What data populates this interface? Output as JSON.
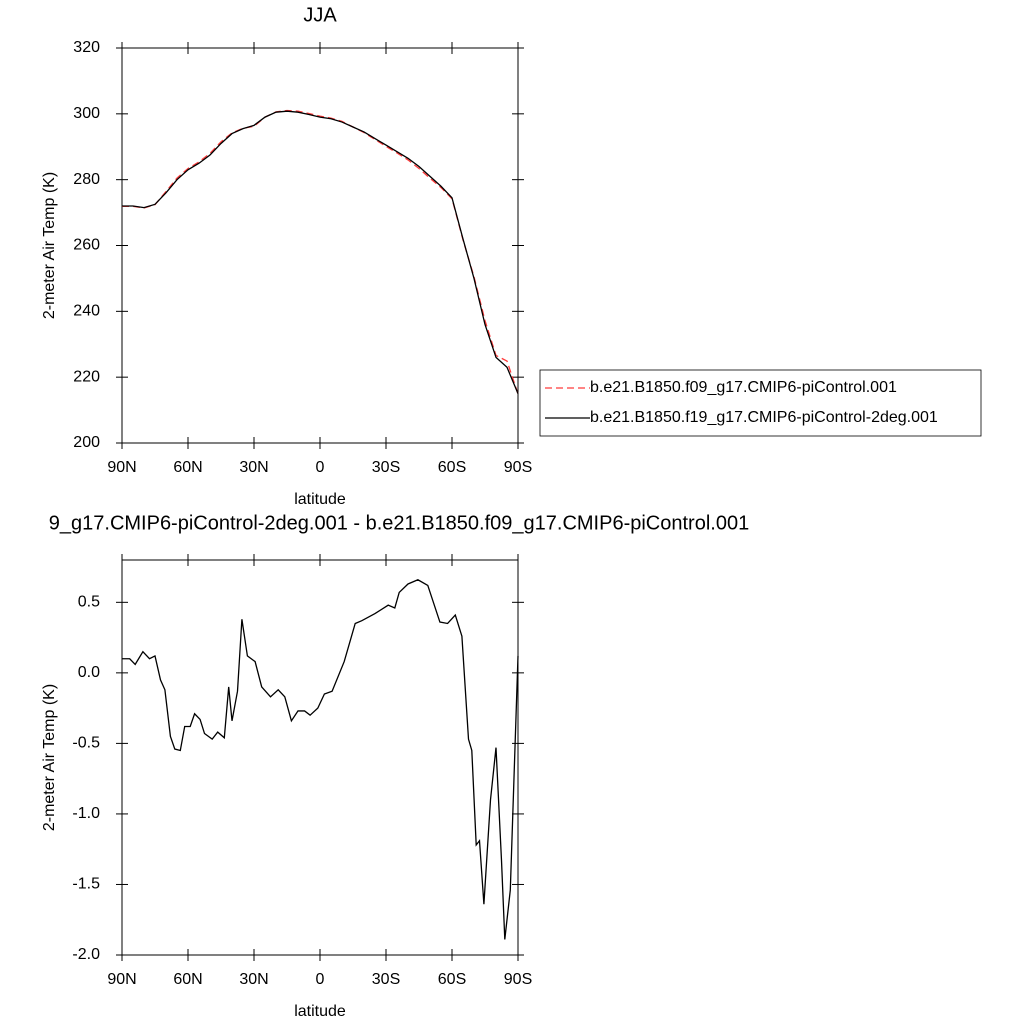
{
  "chart_data": [
    {
      "type": "line",
      "title": "JJA",
      "xlabel": "latitude",
      "ylabel": "2-meter Air Temp (K)",
      "x": [
        90,
        85,
        80,
        75,
        70,
        65,
        60,
        55,
        50,
        45,
        40,
        35,
        30,
        25,
        20,
        15,
        10,
        5,
        0,
        -5,
        -10,
        -15,
        -20,
        -25,
        -30,
        -35,
        -40,
        -45,
        -50,
        -55,
        -60,
        -65,
        -70,
        -75,
        -80,
        -85,
        -90
      ],
      "series": [
        {
          "name": "b.e21.B1850.f09_g17.CMIP6-piControl.001",
          "color": "#ff3b3b",
          "dash": true,
          "values": [
            271.9,
            271.9,
            271.4,
            272.4,
            276.4,
            280.5,
            283.4,
            285.4,
            288,
            291.5,
            294.2,
            295.6,
            296.2,
            299,
            300.6,
            301,
            300.8,
            300.1,
            299.3,
            298.7,
            297.7,
            296,
            294.3,
            292.2,
            290.1,
            288.1,
            286,
            283.4,
            280.4,
            277.6,
            274.2,
            261.7,
            250.5,
            237.2,
            226.6,
            224.9,
            214.9
          ]
        },
        {
          "name": "b.e21.B1850.f19_g17.CMIP6-piControl-2deg.001",
          "color": "#000000",
          "dash": false,
          "values": [
            272,
            272,
            271.5,
            272.5,
            276,
            280,
            283,
            285,
            287.5,
            291,
            294,
            295.5,
            296.5,
            299,
            300.5,
            300.8,
            300.5,
            299.8,
            299,
            298.5,
            297.5,
            296,
            294.5,
            292.5,
            290.5,
            288.5,
            286.5,
            284,
            281,
            278,
            274.5,
            262,
            250,
            236,
            226,
            223,
            215
          ]
        }
      ],
      "xlim": [
        90,
        -90
      ],
      "xticks": [
        {
          "value": 90,
          "label": "90N"
        },
        {
          "value": 60,
          "label": "60N"
        },
        {
          "value": 30,
          "label": "30N"
        },
        0,
        {
          "value": -30,
          "label": "30S"
        },
        {
          "value": -60,
          "label": "60S"
        },
        {
          "value": -90,
          "label": "90S"
        }
      ],
      "ylim": [
        200,
        320
      ],
      "yticks": [
        200,
        220,
        240,
        260,
        280,
        300,
        320
      ]
    },
    {
      "type": "line",
      "title": "9_g17.CMIP6-piControl-2deg.001 - b.e21.B1850.f09_g17.CMIP6-piControl.001",
      "xlabel": "latitude",
      "ylabel": "2-meter Air Temp (K)",
      "x": [
        90,
        86.5,
        84,
        80.5,
        77.5,
        75,
        72.5,
        70.5,
        68,
        66,
        63.5,
        61.5,
        59,
        57,
        54.5,
        52.5,
        49,
        46.5,
        43.5,
        41.5,
        40,
        37.5,
        35.5,
        33,
        29.5,
        26.5,
        22.5,
        19,
        16,
        13,
        10,
        7,
        4.5,
        1,
        -2,
        -5.5,
        -11,
        -16,
        -19,
        -25,
        -31,
        -34,
        -36,
        -40,
        -44.5,
        -49,
        -54.5,
        -58,
        -61.5,
        -64.5,
        -67.5,
        -69,
        -71,
        -72.5,
        -74.5,
        -77.5,
        -80,
        -82.5,
        -84,
        -86.5,
        -90
      ],
      "values": [
        0.1,
        0.1,
        0.06,
        0.15,
        0.1,
        0.12,
        -0.05,
        -0.12,
        -0.45,
        -0.54,
        -0.55,
        -0.38,
        -0.38,
        -0.29,
        -0.33,
        -0.43,
        -0.47,
        -0.42,
        -0.46,
        -0.1,
        -0.34,
        -0.13,
        0.38,
        0.12,
        0.08,
        -0.1,
        -0.17,
        -0.12,
        -0.17,
        -0.34,
        -0.27,
        -0.27,
        -0.3,
        -0.25,
        -0.15,
        -0.13,
        0.08,
        0.35,
        0.37,
        0.42,
        0.48,
        0.46,
        0.57,
        0.63,
        0.66,
        0.62,
        0.36,
        0.35,
        0.41,
        0.26,
        -0.47,
        -0.55,
        -1.22,
        -1.19,
        -1.64,
        -0.9,
        -0.53,
        -1.33,
        -1.89,
        -1.54,
        0.12
      ],
      "color": "#000000",
      "xlim": [
        90,
        -90
      ],
      "xticks": [
        {
          "value": 90,
          "label": "90N"
        },
        {
          "value": 60,
          "label": "60N"
        },
        {
          "value": 30,
          "label": "30N"
        },
        0,
        {
          "value": -30,
          "label": "30S"
        },
        {
          "value": -60,
          "label": "60S"
        },
        {
          "value": -90,
          "label": "90S"
        }
      ],
      "ylim": [
        -2.0,
        0.8
      ],
      "yticks": [
        {
          "value": -2,
          "label": "-2.0"
        },
        -1.5,
        {
          "value": -1,
          "label": "-1.0"
        },
        -0.5,
        {
          "value": 0,
          "label": "0.0"
        },
        0.5
      ]
    }
  ]
}
